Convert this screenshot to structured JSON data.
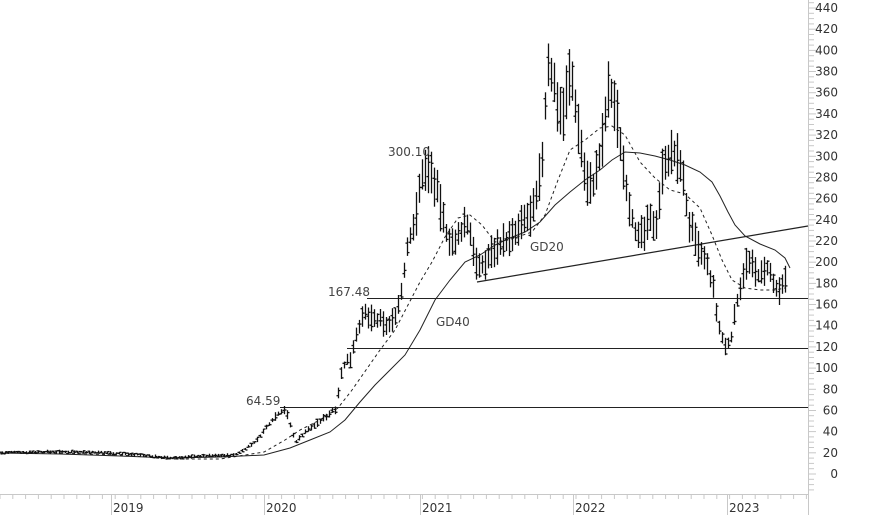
{
  "chart_data": {
    "type": "ohlc-line",
    "title": "",
    "xlabel": "",
    "ylabel": "",
    "ylim": [
      0,
      440
    ],
    "y_ticks": [
      0,
      20,
      40,
      60,
      80,
      100,
      120,
      140,
      160,
      180,
      200,
      220,
      240,
      260,
      280,
      300,
      320,
      340,
      360,
      380,
      400,
      420,
      440
    ],
    "x_ticks": [
      "2019",
      "2020",
      "2021",
      "2022",
      "2023"
    ],
    "grid": false,
    "legend": "none",
    "annotations": [
      {
        "text": "300.10",
        "target": "2021 high"
      },
      {
        "text": "167.48",
        "target": "horizontal level"
      },
      {
        "text": "64.59",
        "target": "2020 level"
      },
      {
        "text": "GD20",
        "target": "20-period moving average (dashed)"
      },
      {
        "text": "GD40",
        "target": "40-period moving average (solid)"
      }
    ],
    "horizontal_levels": [
      167.48,
      119,
      64.59
    ],
    "trendline": {
      "from": {
        "date": "2021-04",
        "value": 182
      },
      "to": {
        "date": "2023-05",
        "value": 234
      }
    },
    "series": [
      {
        "name": "Price (weekly bars)",
        "x": [
          "2018-06",
          "2018-09",
          "2018-12",
          "2019-03",
          "2019-06",
          "2019-09",
          "2019-12",
          "2020-02",
          "2020-03",
          "2020-04",
          "2020-06",
          "2020-07",
          "2020-08",
          "2020-09",
          "2020-10",
          "2020-11",
          "2020-12",
          "2021-01",
          "2021-02",
          "2021-03",
          "2021-04",
          "2021-05",
          "2021-06",
          "2021-07",
          "2021-08",
          "2021-09",
          "2021-10",
          "2021-11",
          "2021-12",
          "2022-01",
          "2022-02",
          "2022-03",
          "2022-04",
          "2022-05",
          "2022-06",
          "2022-07",
          "2022-08",
          "2022-09",
          "2022-10",
          "2022-11",
          "2022-12",
          "2023-01",
          "2023-02",
          "2023-03",
          "2023-04"
        ],
        "values": [
          20,
          22,
          18,
          20,
          14,
          17,
          19,
          40,
          25,
          50,
          65,
          100,
          145,
          135,
          150,
          240,
          290,
          270,
          220,
          240,
          205,
          190,
          200,
          215,
          240,
          280,
          390,
          360,
          330,
          310,
          280,
          310,
          360,
          320,
          230,
          220,
          240,
          305,
          290,
          260,
          180,
          120,
          200,
          195,
          185
        ]
      },
      {
        "name": "GD20",
        "style": "dashed",
        "x": [
          "2018-06",
          "2019-06",
          "2019-12",
          "2020-03",
          "2020-06",
          "2020-09",
          "2020-12",
          "2021-03",
          "2021-05",
          "2021-08",
          "2021-11",
          "2022-02",
          "2022-05",
          "2022-08",
          "2022-11",
          "2023-01",
          "2023-04"
        ],
        "values": [
          20,
          18,
          17,
          28,
          45,
          110,
          210,
          240,
          215,
          235,
          300,
          325,
          280,
          265,
          240,
          175,
          170
        ]
      },
      {
        "name": "GD40",
        "style": "solid",
        "x": [
          "2018-06",
          "2019-06",
          "2019-12",
          "2020-03",
          "2020-06",
          "2020-09",
          "2020-12",
          "2021-03",
          "2021-06",
          "2021-09",
          "2021-12",
          "2022-03",
          "2022-06",
          "2022-09",
          "2022-12",
          "2023-02",
          "2023-04"
        ],
        "values": [
          20,
          17,
          18,
          25,
          48,
          100,
          150,
          200,
          215,
          250,
          270,
          305,
          300,
          285,
          230,
          210,
          195
        ]
      }
    ]
  },
  "axis": {
    "y_labels": [
      "440",
      "420",
      "400",
      "380",
      "360",
      "340",
      "320",
      "300",
      "280",
      "260",
      "240",
      "220",
      "200",
      "180",
      "160",
      "140",
      "120",
      "100",
      "80",
      "60",
      "40",
      "20",
      "0"
    ],
    "x_labels": [
      "2019",
      "2020",
      "2021",
      "2022",
      "2023"
    ]
  },
  "labels": {
    "high_2021": "300.10",
    "level_167": "167.48",
    "level_64": "64.59",
    "gd20": "GD20",
    "gd40": "GD40"
  }
}
